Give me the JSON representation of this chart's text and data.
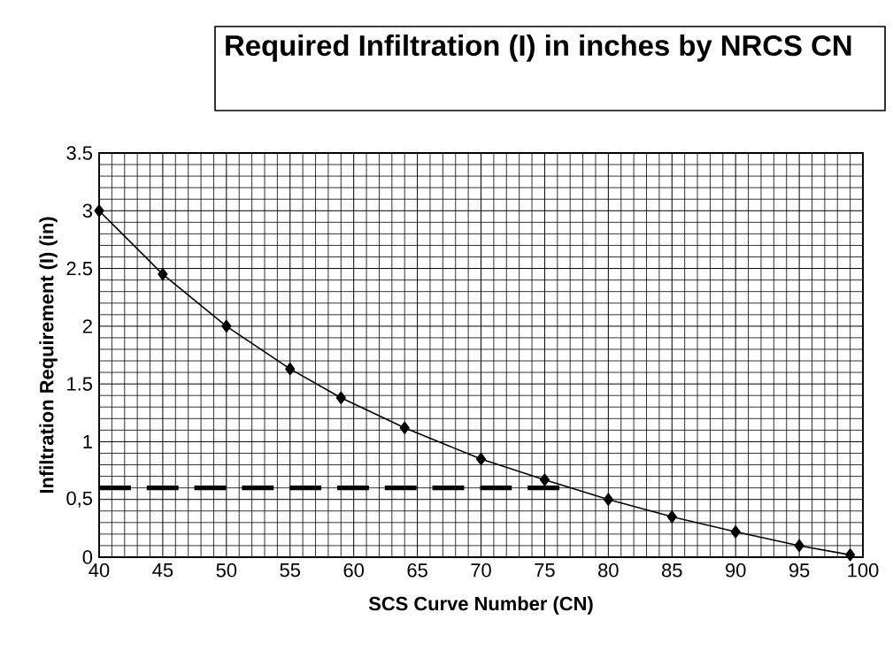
{
  "chart_data": {
    "type": "line",
    "title": "Required Infiltration (I) in inches by NRCS CN",
    "xlabel": "SCS Curve Number (CN)",
    "ylabel": "Infiltration Requirement (I) (in)",
    "x": [
      40,
      45,
      50,
      55,
      59,
      64,
      70,
      75,
      80,
      85,
      90,
      95,
      99
    ],
    "series": [
      {
        "color": "#000000",
        "marker": "diamond",
        "line_style": "solid",
        "values": [
          3.0,
          2.45,
          2.0,
          1.63,
          1.38,
          1.12,
          0.85,
          0.67,
          0.5,
          0.35,
          0.22,
          0.1,
          0.02
        ]
      },
      {
        "color": "#000000",
        "marker": "none",
        "line_style": "dashed",
        "x": [
          40,
          77
        ],
        "values": [
          0.6,
          0.6
        ]
      }
    ],
    "xlim": [
      40,
      100
    ],
    "xticks": [
      40,
      45,
      50,
      55,
      60,
      65,
      70,
      75,
      80,
      85,
      90,
      95,
      100
    ],
    "ylim": [
      0,
      3.5
    ],
    "yticks": [
      0,
      {
        "value": 0.5,
        "label": "0,5"
      },
      1,
      1.5,
      2,
      2.5,
      3,
      3.5
    ],
    "grid": true
  }
}
